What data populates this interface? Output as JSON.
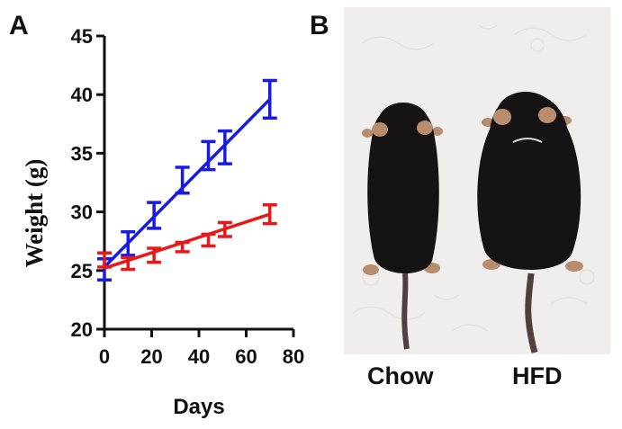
{
  "panels": {
    "a_label": "A",
    "b_label": "B"
  },
  "chart_data": {
    "type": "line",
    "title": "",
    "xlabel": "Days",
    "ylabel": "Weight (g)",
    "xlim": [
      0,
      80
    ],
    "ylim": [
      20,
      45
    ],
    "xticks": [
      0,
      20,
      40,
      60,
      80
    ],
    "yticks": [
      20,
      25,
      30,
      35,
      40,
      45
    ],
    "grid": false,
    "legend": "none",
    "series": [
      {
        "color": "#1a1ae6",
        "x": [
          0,
          10,
          21,
          33,
          44,
          51,
          70
        ],
        "y": [
          25.1,
          27.3,
          29.7,
          32.7,
          34.8,
          35.5,
          39.6
        ],
        "err": [
          0.9,
          1.0,
          1.1,
          1.1,
          1.2,
          1.4,
          1.6
        ],
        "fit": {
          "x": [
            0,
            70
          ],
          "y": [
            25.3,
            39.6
          ]
        }
      },
      {
        "color": "#e61a1a",
        "x": [
          0,
          10,
          21,
          33,
          44,
          51,
          70
        ],
        "y": [
          25.9,
          25.6,
          26.3,
          27.0,
          27.6,
          28.5,
          29.8
        ],
        "err": [
          0.6,
          0.5,
          0.6,
          0.4,
          0.5,
          0.6,
          0.8
        ],
        "fit": {
          "x": [
            0,
            70
          ],
          "y": [
            25.2,
            29.8
          ]
        }
      }
    ]
  },
  "photo": {
    "captions": [
      "Chow",
      "HFD"
    ],
    "mice": [
      "chow-mouse",
      "hfd-mouse"
    ],
    "background_color": "#efeeec",
    "mouse_color": "#151313",
    "ear_color": "#b88d6e",
    "tail_color": "#4f403d"
  }
}
